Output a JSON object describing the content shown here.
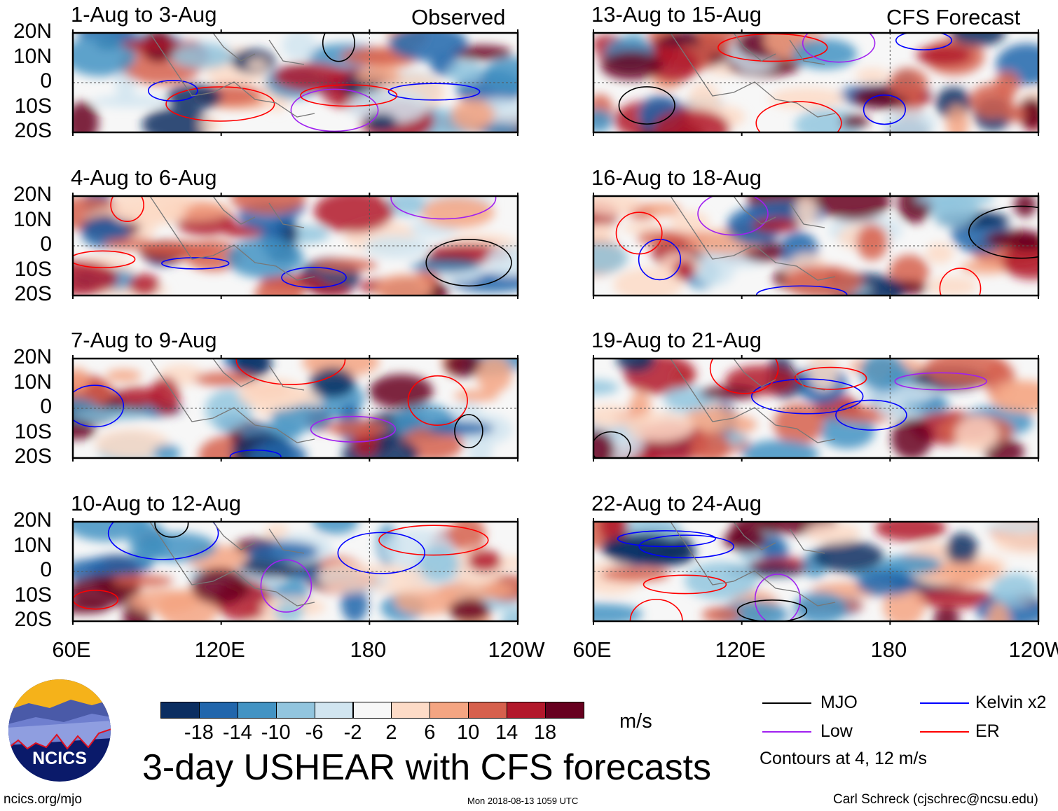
{
  "chart_data": {
    "type": "heatmap",
    "title": "3-day USHEAR with CFS forecasts",
    "units": "m/s",
    "columns": [
      {
        "label": "Observed",
        "panels": [
          "1-Aug to 3-Aug",
          "4-Aug to 6-Aug",
          "7-Aug to 9-Aug",
          "10-Aug to 12-Aug"
        ]
      },
      {
        "label": "CFS Forecast",
        "panels": [
          "13-Aug to 15-Aug",
          "16-Aug to 18-Aug",
          "19-Aug to 21-Aug",
          "22-Aug to 24-Aug"
        ]
      }
    ],
    "y_ticks": [
      "20N",
      "10N",
      "0",
      "10S",
      "20S"
    ],
    "x_ticks": [
      "60E",
      "120E",
      "180",
      "120W"
    ],
    "xlim": [
      60,
      240
    ],
    "ylim": [
      -20,
      20
    ],
    "colorbar": {
      "labels": [
        "-18",
        "-14",
        "-10",
        "-6",
        "-2",
        "2",
        "6",
        "10",
        "14",
        "18"
      ],
      "colors": [
        "#0b2e61",
        "#2166ac",
        "#4393c3",
        "#92c5de",
        "#d1e5f0",
        "#f7f7f7",
        "#fddbc7",
        "#f4a582",
        "#d6604d",
        "#b2182b",
        "#67001f"
      ]
    },
    "legend": [
      {
        "label": "MJO",
        "color": "#000000"
      },
      {
        "label": "Kelvin x2",
        "color": "#0000ff"
      },
      {
        "label": "Low",
        "color": "#a020f0"
      },
      {
        "label": "ER",
        "color": "#ff0000"
      }
    ],
    "contour_note": "Contours at 4, 12 m/s"
  },
  "footer": {
    "logo_text": "NCICS",
    "url": "ncics.org/mjo",
    "timestamp": "Mon 2018-08-13 1059 UTC",
    "credit": "Carl Schreck (cjschrec@ncsu.edu)"
  }
}
